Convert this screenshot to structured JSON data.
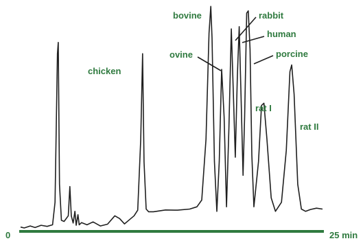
{
  "colors": {
    "trace": "#1f1f1f",
    "label": "#2f7a3f",
    "axis": "#2f7a3f"
  },
  "chart_data": {
    "type": "line",
    "title": "",
    "xlabel": "",
    "ylabel": "",
    "x_unit": "min",
    "x_start_label": "0",
    "x_end_label": "25 min",
    "xlim": [
      0,
      25
    ],
    "ylim": [
      0,
      100
    ],
    "grid": false,
    "legend": "none",
    "series": [
      {
        "values": [
          [
            0.0,
            1.0
          ],
          [
            0.3,
            0.6
          ],
          [
            0.8,
            1.5
          ],
          [
            1.2,
            0.8
          ],
          [
            1.7,
            1.8
          ],
          [
            2.2,
            1.3
          ],
          [
            2.65,
            2.0
          ],
          [
            2.85,
            12.0
          ],
          [
            3.05,
            78.0
          ],
          [
            3.12,
            83.0
          ],
          [
            3.22,
            20.0
          ],
          [
            3.38,
            4.0
          ],
          [
            3.6,
            3.5
          ],
          [
            3.95,
            6.0
          ],
          [
            4.08,
            19.0
          ],
          [
            4.2,
            6.0
          ],
          [
            4.35,
            2.8
          ],
          [
            4.5,
            8.0
          ],
          [
            4.6,
            1.8
          ],
          [
            4.75,
            6.5
          ],
          [
            4.85,
            2.0
          ],
          [
            5.05,
            3.0
          ],
          [
            5.5,
            2.0
          ],
          [
            6.0,
            3.3
          ],
          [
            6.6,
            1.5
          ],
          [
            7.2,
            2.3
          ],
          [
            7.8,
            6.0
          ],
          [
            8.2,
            4.8
          ],
          [
            8.6,
            2.4
          ],
          [
            9.0,
            4.2
          ],
          [
            9.4,
            6.0
          ],
          [
            9.7,
            8.5
          ],
          [
            9.95,
            40.0
          ],
          [
            10.1,
            78.0
          ],
          [
            10.22,
            30.0
          ],
          [
            10.4,
            9.0
          ],
          [
            10.6,
            7.8
          ],
          [
            11.0,
            7.8
          ],
          [
            12.0,
            8.6
          ],
          [
            13.0,
            8.5
          ],
          [
            14.0,
            9.0
          ],
          [
            14.6,
            10.0
          ],
          [
            15.0,
            13.0
          ],
          [
            15.35,
            40.0
          ],
          [
            15.6,
            87.0
          ],
          [
            15.75,
            99.0
          ],
          [
            15.85,
            85.0
          ],
          [
            16.05,
            30.0
          ],
          [
            16.25,
            8.0
          ],
          [
            16.45,
            30.0
          ],
          [
            16.65,
            71.0
          ],
          [
            16.85,
            50.0
          ],
          [
            17.05,
            10.0
          ],
          [
            17.25,
            45.0
          ],
          [
            17.45,
            89.0
          ],
          [
            17.62,
            60.0
          ],
          [
            17.78,
            32.0
          ],
          [
            17.95,
            68.0
          ],
          [
            18.1,
            90.0
          ],
          [
            18.25,
            60.0
          ],
          [
            18.42,
            24.0
          ],
          [
            18.55,
            50.0
          ],
          [
            18.72,
            96.0
          ],
          [
            18.85,
            97.0
          ],
          [
            19.0,
            80.0
          ],
          [
            19.15,
            33.0
          ],
          [
            19.32,
            10.0
          ],
          [
            19.7,
            30.0
          ],
          [
            19.95,
            55.0
          ],
          [
            20.15,
            56.0
          ],
          [
            20.4,
            40.0
          ],
          [
            20.75,
            14.0
          ],
          [
            21.1,
            8.0
          ],
          [
            21.6,
            12.0
          ],
          [
            22.0,
            35.0
          ],
          [
            22.3,
            70.0
          ],
          [
            22.45,
            73.0
          ],
          [
            22.65,
            60.0
          ],
          [
            22.95,
            20.0
          ],
          [
            23.25,
            9.0
          ],
          [
            23.6,
            8.0
          ],
          [
            24.0,
            8.8
          ],
          [
            24.5,
            9.4
          ],
          [
            25.0,
            9.0
          ]
        ]
      }
    ],
    "annotations": [
      {
        "text": "chicken",
        "x": 8.1,
        "y": 78
      },
      {
        "text": "bovine",
        "x": 15.6,
        "y": 99
      },
      {
        "text": "ovine",
        "x": 16.65,
        "y": 71
      },
      {
        "text": "rabbit",
        "x": 17.4,
        "y": 89
      },
      {
        "text": "human",
        "x": 17.9,
        "y": 90
      },
      {
        "text": "porcine",
        "x": 18.8,
        "y": 80
      },
      {
        "text": "rat I",
        "x": 19.95,
        "y": 56
      },
      {
        "text": "rat II",
        "x": 22.35,
        "y": 73
      }
    ]
  }
}
